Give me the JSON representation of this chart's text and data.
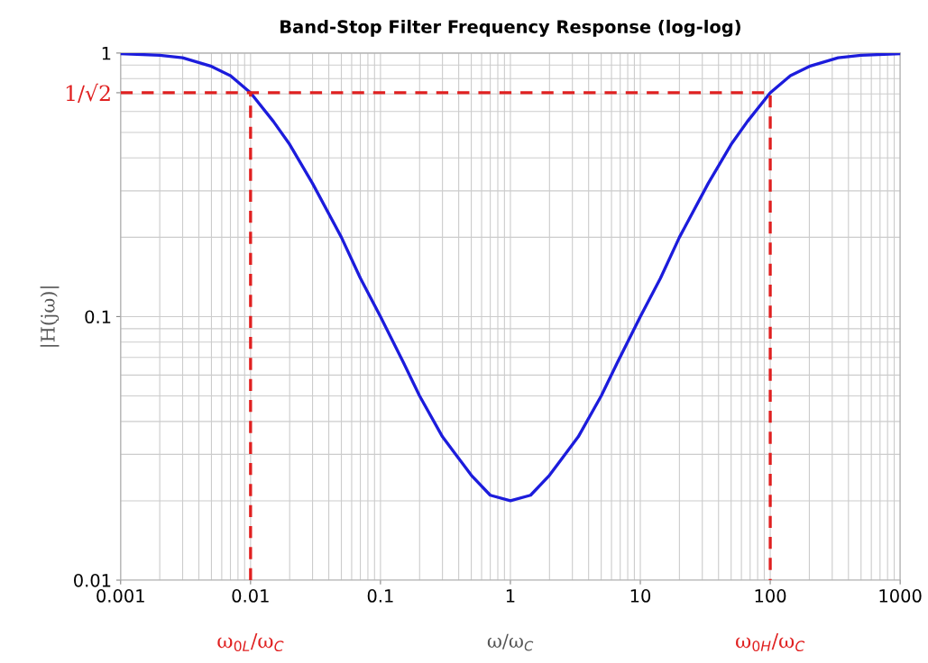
{
  "chart_data": {
    "type": "line",
    "title": "Band-Stop Filter Frequency Response (log-log)",
    "xlabel": "ω/ω$_{C}$",
    "ylabel": "|H(jω)|",
    "log": "xy",
    "xlim": [
      0.001,
      1000
    ],
    "ylim": [
      0.01,
      1
    ],
    "xticks": [
      0.001,
      0.01,
      0.1,
      1,
      10,
      100,
      1000
    ],
    "yticks": [
      0.01,
      0.1,
      {
        "value": 0.707,
        "label": "1/√2"
      },
      1
    ],
    "grid": true,
    "line_style": "solid",
    "marker": "none",
    "series": [
      {
        "color": "#1c1cdc",
        "x": [
          0.001,
          0.002,
          0.003,
          0.005,
          0.007,
          0.01,
          0.015,
          0.02,
          0.03,
          0.05,
          0.07,
          0.1,
          0.15,
          0.2,
          0.3,
          0.5,
          0.7,
          1,
          1.43,
          2,
          3.33,
          5,
          6.67,
          10,
          14.3,
          20,
          33.3,
          50,
          66.7,
          100,
          143,
          200,
          333,
          500,
          1000
        ],
        "values": [
          0.995,
          0.98,
          0.96,
          0.89,
          0.82,
          0.707,
          0.55,
          0.45,
          0.32,
          0.2,
          0.14,
          0.1,
          0.067,
          0.05,
          0.035,
          0.025,
          0.021,
          0.02,
          0.021,
          0.025,
          0.035,
          0.05,
          0.067,
          0.1,
          0.14,
          0.2,
          0.32,
          0.45,
          0.55,
          0.707,
          0.82,
          0.89,
          0.96,
          0.98,
          0.995
        ]
      },
      {
        "color": "#e02020",
        "line_style": "dashed",
        "x": [
          0.01,
          0.01
        ],
        "values": [
          0.01,
          0.707
        ]
      },
      {
        "color": "#e02020",
        "line_style": "dashed",
        "x": [
          0.001,
          100,
          100
        ],
        "values": [
          0.707,
          0.707,
          0.01
        ]
      }
    ],
    "annotations": [
      {
        "text": "ω$_{0L}$/ω$_{C}$",
        "x": 0.01,
        "y": 0.01
      },
      {
        "text": "ω$_{0H}$/ω$_{C}$",
        "x": 100,
        "y": 0.01
      }
    ]
  }
}
